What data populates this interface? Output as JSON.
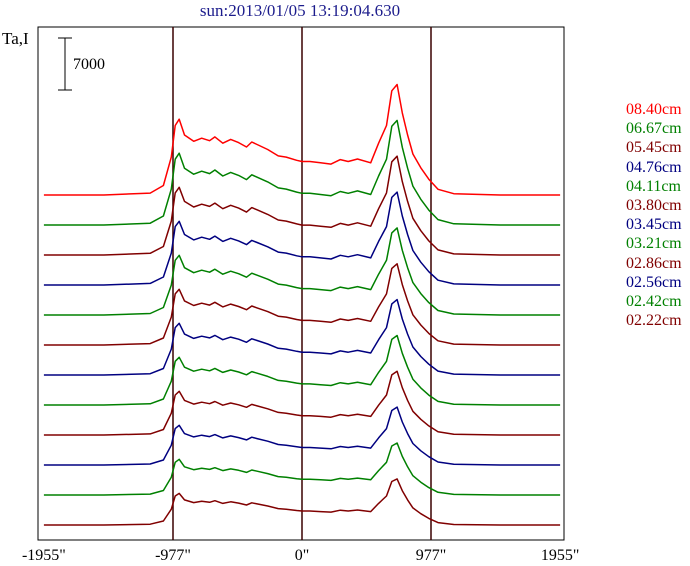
{
  "title": "sun:2013/01/05 13:19:04.630",
  "chart_data": {
    "type": "line",
    "title": "sun:2013/01/05 13:19:04.630",
    "ylabel": "Ta,I",
    "xlabel": "",
    "x_ticks": [
      "-1955\"",
      "-977\"",
      "0\"",
      "977\"",
      "1955\""
    ],
    "x_tick_values": [
      -1955,
      -977,
      0,
      977,
      1955
    ],
    "xlim": [
      -1955,
      1955
    ],
    "vertical_markers": [
      -977,
      0,
      977
    ],
    "scale_bar_label": "7000",
    "scale_bar_value": 7000,
    "stacked_offsets": true,
    "grid": false,
    "legend_position": "right",
    "series": [
      {
        "name": "08.40cm",
        "color": "#ff0000"
      },
      {
        "name": "06.67cm",
        "color": "#008000"
      },
      {
        "name": "05.45cm",
        "color": "#800000"
      },
      {
        "name": "04.76cm",
        "color": "#000080"
      },
      {
        "name": "04.11cm",
        "color": "#008000"
      },
      {
        "name": "03.80cm",
        "color": "#800000"
      },
      {
        "name": "03.45cm",
        "color": "#000080"
      },
      {
        "name": "03.21cm",
        "color": "#008000"
      },
      {
        "name": "02.86cm",
        "color": "#800000"
      },
      {
        "name": "02.56cm",
        "color": "#000080"
      },
      {
        "name": "02.42cm",
        "color": "#008000"
      },
      {
        "name": "02.22cm",
        "color": "#800000"
      }
    ],
    "profile_x": [
      -1955,
      -1500,
      -1150,
      -1050,
      -990,
      -960,
      -930,
      -890,
      -820,
      -760,
      -700,
      -660,
      -600,
      -540,
      -480,
      -420,
      -380,
      -340,
      -260,
      -180,
      -120,
      -40,
      0,
      60,
      140,
      220,
      290,
      350,
      420,
      520,
      580,
      640,
      680,
      720,
      760,
      800,
      840,
      900,
      960,
      1030,
      1150,
      1500,
      1955
    ],
    "profile_y": [
      0,
      0,
      300,
      1500,
      6000,
      11000,
      12000,
      9500,
      8500,
      9000,
      8600,
      9200,
      8200,
      8800,
      8300,
      7600,
      8400,
      8000,
      7200,
      6200,
      6000,
      5500,
      5300,
      5300,
      5100,
      4900,
      5600,
      5300,
      5700,
      5100,
      8200,
      11000,
      16500,
      17500,
      13000,
      9500,
      6500,
      4300,
      2500,
      900,
      200,
      0,
      0
    ]
  }
}
